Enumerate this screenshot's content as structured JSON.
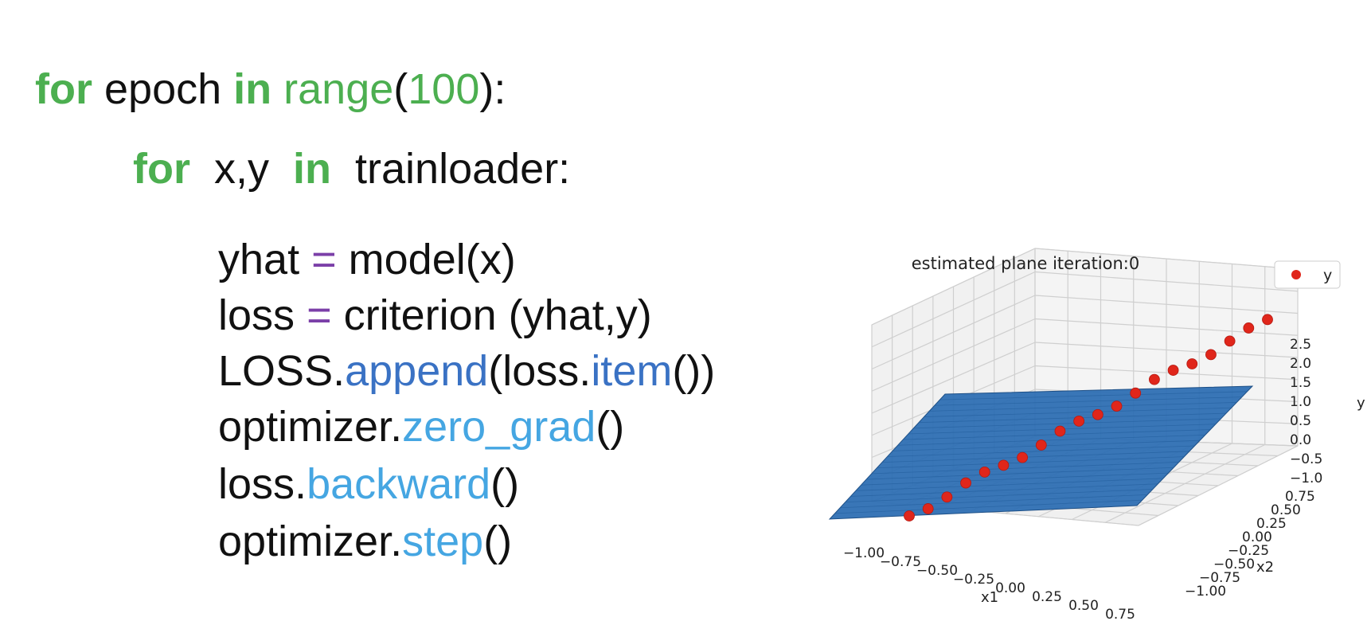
{
  "colors": {
    "keyword": "#4caf50",
    "builtin": "#4caf50",
    "operator": "#7b3fa8",
    "method_dark": "#3a72c4",
    "method_light": "#45a6e2",
    "plane_fill": "#2e6fb3",
    "points": "#e0261b"
  },
  "code": {
    "line1": {
      "kw_for": "for",
      "mid1": " epoch ",
      "kw_in": "in",
      "sp": " ",
      "fn_range": "range",
      "paren_open": "(",
      "num": "100",
      "tail": "):"
    },
    "line2": {
      "kw_for": "for",
      "mid": "  x,y  ",
      "kw_in": "in",
      "tail": "  trainloader:"
    },
    "line3": {
      "lhs": "yhat ",
      "op": "=",
      "rhs": " model(x)"
    },
    "line4": {
      "lhs": "loss ",
      "op": "=",
      "rhs": " criterion (yhat,y)"
    },
    "line5": {
      "obj": "LOSS.",
      "method": "append",
      "mid": "(loss.",
      "method2": "item",
      "tail": "())"
    },
    "line6": {
      "obj": "optimizer.",
      "method": "zero_grad",
      "tail": "()"
    },
    "line7": {
      "obj": "loss.",
      "method": "backward",
      "tail": "()"
    },
    "line8": {
      "obj": "optimizer.",
      "method": "step",
      "tail": "()"
    }
  },
  "plot": {
    "title": "estimated plane iteration:0",
    "legend": "y",
    "xlabel": "x1",
    "ylabel": "x2",
    "zlabel": "y",
    "x1_ticks": [
      "−1.00",
      "−0.75",
      "−0.50",
      "−0.25",
      "0.00",
      "0.25",
      "0.50",
      "0.75"
    ],
    "x2_ticks": [
      "−1.00",
      "−0.75",
      "−0.50",
      "−0.25",
      "0.00",
      "0.25",
      "0.50",
      "0.75"
    ],
    "z_ticks": [
      "−1.0",
      "−0.5",
      "0.0",
      "0.5",
      "1.0",
      "1.5",
      "2.0",
      "2.5"
    ],
    "point_count": 20
  }
}
